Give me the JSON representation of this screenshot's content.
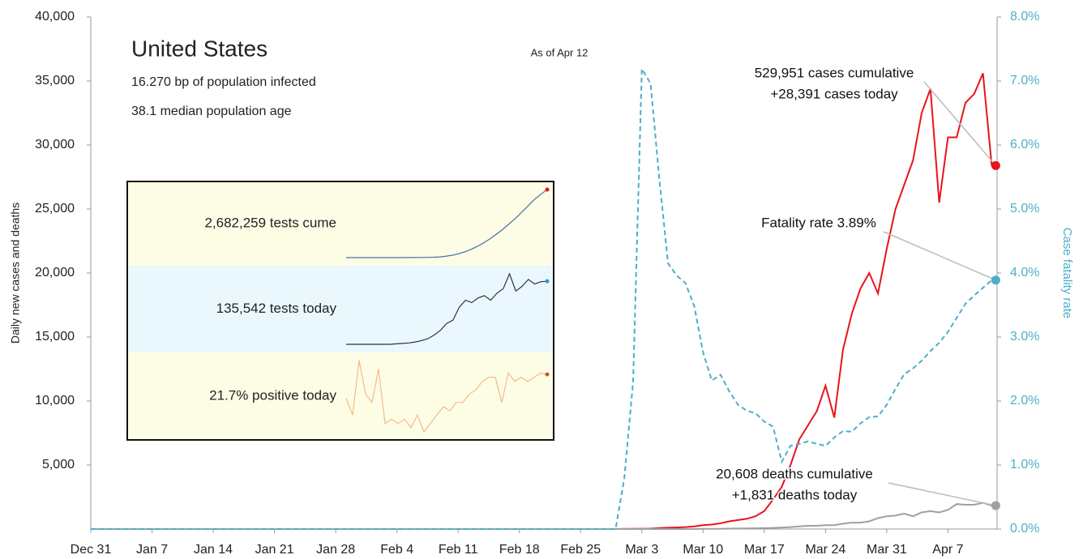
{
  "chart_data": {
    "type": "line",
    "title": "United States",
    "subtitle": [
      "16.270 bp of population infected",
      "38.1 median population age"
    ],
    "date_note": "As of Apr 12",
    "y_label": "Daily new cases and deaths",
    "y2_label": "Case fatality rate",
    "categories": [
      "Dec 31",
      null,
      null,
      null,
      null,
      null,
      null,
      "Jan 7",
      null,
      null,
      null,
      null,
      null,
      null,
      "Jan 14",
      null,
      null,
      null,
      null,
      null,
      null,
      "Jan 21",
      null,
      null,
      null,
      null,
      null,
      null,
      "Jan 28",
      null,
      null,
      null,
      null,
      null,
      null,
      "Feb 4",
      null,
      null,
      null,
      null,
      null,
      null,
      "Feb 11",
      null,
      null,
      null,
      null,
      null,
      null,
      "Feb 18",
      null,
      null,
      null,
      null,
      null,
      null,
      "Feb 25",
      null,
      null,
      null,
      null,
      null,
      null,
      "Mar 3",
      null,
      null,
      null,
      null,
      null,
      null,
      "Mar 10",
      null,
      null,
      null,
      null,
      null,
      null,
      "Mar 17",
      null,
      null,
      null,
      null,
      null,
      null,
      "Mar 24",
      null,
      null,
      null,
      null,
      null,
      null,
      "Mar 31",
      null,
      null,
      null,
      null,
      null,
      null,
      "Apr 7",
      null,
      null,
      null,
      null,
      null
    ],
    "series": [
      {
        "name": "cases",
        "color": "#e8141b",
        "values": [
          0,
          0,
          0,
          0,
          0,
          0,
          0,
          0,
          0,
          0,
          0,
          0,
          0,
          0,
          0,
          0,
          0,
          0,
          0,
          0,
          0,
          0,
          0,
          0,
          0,
          0,
          0,
          0,
          0,
          0,
          0,
          0,
          0,
          0,
          0,
          0,
          0,
          0,
          0,
          0,
          0,
          0,
          0,
          0,
          0,
          0,
          0,
          0,
          0,
          0,
          0,
          0,
          0,
          0,
          0,
          0,
          0,
          0,
          0,
          0,
          0,
          10,
          20,
          25,
          30,
          70,
          100,
          120,
          150,
          200,
          300,
          350,
          450,
          600,
          700,
          800,
          1000,
          1400,
          2300,
          3300,
          5000,
          7000,
          8100,
          9200,
          11200,
          8700,
          14000,
          16800,
          18800,
          20000,
          18400,
          21900,
          25000,
          26900,
          28800,
          32500,
          34400,
          25500,
          30600,
          30600,
          33300,
          34000,
          35600,
          28391
        ]
      },
      {
        "name": "deaths",
        "color": "#a0a0a0",
        "values": [
          0,
          0,
          0,
          0,
          0,
          0,
          0,
          0,
          0,
          0,
          0,
          0,
          0,
          0,
          0,
          0,
          0,
          0,
          0,
          0,
          0,
          0,
          0,
          0,
          0,
          0,
          0,
          0,
          0,
          0,
          0,
          0,
          0,
          0,
          0,
          0,
          0,
          0,
          0,
          0,
          0,
          0,
          0,
          0,
          0,
          0,
          0,
          0,
          0,
          0,
          0,
          0,
          0,
          0,
          0,
          0,
          0,
          0,
          0,
          0,
          0,
          0,
          0,
          0,
          0,
          0,
          0,
          0,
          0,
          0,
          10,
          10,
          20,
          30,
          40,
          50,
          60,
          70,
          90,
          120,
          150,
          200,
          250,
          250,
          300,
          300,
          420,
          500,
          500,
          600,
          850,
          1000,
          1050,
          1200,
          1000,
          1300,
          1400,
          1300,
          1500,
          1950,
          1900,
          1900,
          2050,
          1831
        ]
      },
      {
        "name": "fatality rate",
        "color": "#4aafc9",
        "axis": "y2",
        "dashed": true,
        "values": [
          0,
          0,
          0,
          0,
          0,
          0,
          0,
          0,
          0,
          0,
          0,
          0,
          0,
          0,
          0,
          0,
          0,
          0,
          0,
          0,
          0,
          0,
          0,
          0,
          0,
          0,
          0,
          0,
          0,
          0,
          0,
          0,
          0,
          0,
          0,
          0,
          0,
          0,
          0,
          0,
          0,
          0,
          0,
          0,
          0,
          0,
          0,
          0,
          0,
          0,
          0,
          0,
          0,
          0,
          0,
          0,
          0,
          0,
          0,
          0,
          0,
          0.8,
          2.3,
          7.19,
          6.96,
          5.48,
          4.15,
          3.96,
          3.84,
          3.48,
          2.76,
          2.32,
          2.41,
          2.15,
          1.94,
          1.85,
          1.81,
          1.68,
          1.6,
          1.05,
          1.3,
          1.33,
          1.37,
          1.33,
          1.3,
          1.43,
          1.53,
          1.52,
          1.65,
          1.75,
          1.76,
          1.94,
          2.19,
          2.42,
          2.51,
          2.63,
          2.78,
          2.91,
          3.08,
          3.3,
          3.52,
          3.65,
          3.77,
          3.89
        ]
      }
    ],
    "ylim": [
      0,
      40000
    ],
    "yticks": [
      {
        "value": 5000,
        "label": "5,000"
      },
      {
        "value": 10000,
        "label": "10,000"
      },
      {
        "value": 15000,
        "label": "15,000"
      },
      {
        "value": 20000,
        "label": "20,000"
      },
      {
        "value": 25000,
        "label": "25,000"
      },
      {
        "value": 30000,
        "label": "30,000"
      },
      {
        "value": 35000,
        "label": "35,000"
      },
      {
        "value": 40000,
        "label": "40,000"
      }
    ],
    "y2lim": [
      0,
      8
    ],
    "y2ticks": [
      {
        "value": 0,
        "label": "0.0%"
      },
      {
        "value": 1,
        "label": "1.0%"
      },
      {
        "value": 2,
        "label": "2.0%"
      },
      {
        "value": 3,
        "label": "3.0%"
      },
      {
        "value": 4,
        "label": "4.0%"
      },
      {
        "value": 5,
        "label": "5.0%"
      },
      {
        "value": 6,
        "label": "6.0%"
      },
      {
        "value": 7,
        "label": "7.0%"
      },
      {
        "value": 8,
        "label": "8.0%"
      }
    ],
    "annotations": [
      {
        "series": 0,
        "lines": [
          "529,951 cases cumulative",
          "+28,391 cases today"
        ]
      },
      {
        "series": 2,
        "lines": [
          "Fatality rate 3.89%"
        ]
      },
      {
        "series": 1,
        "lines": [
          "20,608 deaths cumulative",
          "+1,831 deaths today"
        ]
      }
    ],
    "inset": [
      {
        "label": "2,682,259 tests cume",
        "color": "#4a6fa5",
        "end_color": "#e8141b",
        "band": "#fdfde6",
        "values": [
          0,
          0,
          0,
          0,
          0,
          0,
          0,
          0,
          0,
          1,
          2,
          3,
          5,
          8,
          15,
          30,
          60,
          100,
          160,
          240,
          340,
          460,
          600,
          760,
          940,
          1130,
          1340,
          1560,
          1800,
          2050,
          2300,
          2500,
          2682
        ]
      },
      {
        "label": "135,542 tests today",
        "color": "#2a3440",
        "end_color": "#3a8fd0",
        "band": "#eaf8fd",
        "values": [
          0,
          0,
          0,
          0,
          0,
          0,
          0,
          0,
          1,
          2,
          3,
          5,
          8,
          12,
          20,
          30,
          45,
          52,
          80,
          95,
          90,
          100,
          105,
          95,
          110,
          120,
          152,
          115,
          125,
          140,
          130,
          135,
          136
        ]
      },
      {
        "label": "21.7% positive today",
        "color": "#f5b98a",
        "end_color": "#b5651d",
        "band": "#fdfde6",
        "values": [
          16,
          12,
          25,
          17,
          15,
          23,
          10,
          11,
          10,
          11,
          9,
          12,
          8,
          10,
          12,
          14,
          13,
          15,
          15,
          17,
          18,
          20,
          21,
          21,
          15,
          22,
          20,
          21,
          20,
          21,
          22,
          21.7
        ]
      }
    ]
  }
}
